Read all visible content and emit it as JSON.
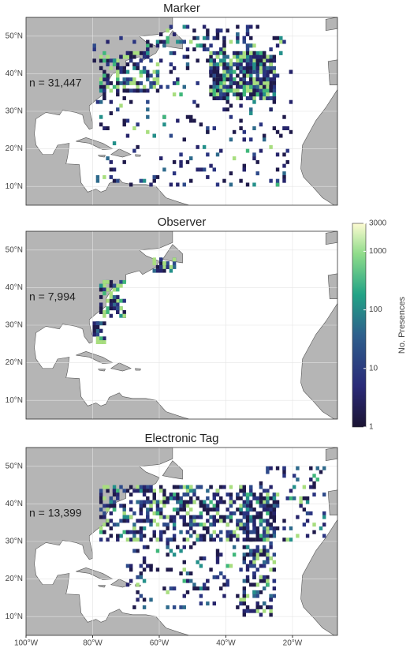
{
  "map": {
    "panels": [
      {
        "title": "Marker",
        "annotation": "n = 31,447"
      },
      {
        "title": "Observer",
        "annotation": "n = 7,994"
      },
      {
        "title": "Electronic Tag",
        "annotation": "n = 13,399"
      }
    ],
    "xlim": [
      -100,
      -6.5
    ],
    "ylim": [
      5,
      55
    ],
    "xticks": [
      {
        "value": -100,
        "label": "100°W"
      },
      {
        "value": -80,
        "label": "80°W"
      },
      {
        "value": -60,
        "label": "60°W"
      },
      {
        "value": -40,
        "label": "40°W"
      },
      {
        "value": -20,
        "label": "20°W"
      }
    ],
    "yticks": [
      {
        "value": 10,
        "label": "10°N"
      },
      {
        "value": 20,
        "label": "20°N"
      },
      {
        "value": 30,
        "label": "30°N"
      },
      {
        "value": 40,
        "label": "40°N"
      },
      {
        "value": 50,
        "label": "50°N"
      }
    ],
    "colorbar": {
      "label": "No. Presences",
      "scale": "log",
      "lim": [
        1,
        3000
      ],
      "ticks": [
        1,
        10,
        100,
        1000,
        3000
      ]
    }
  }
}
